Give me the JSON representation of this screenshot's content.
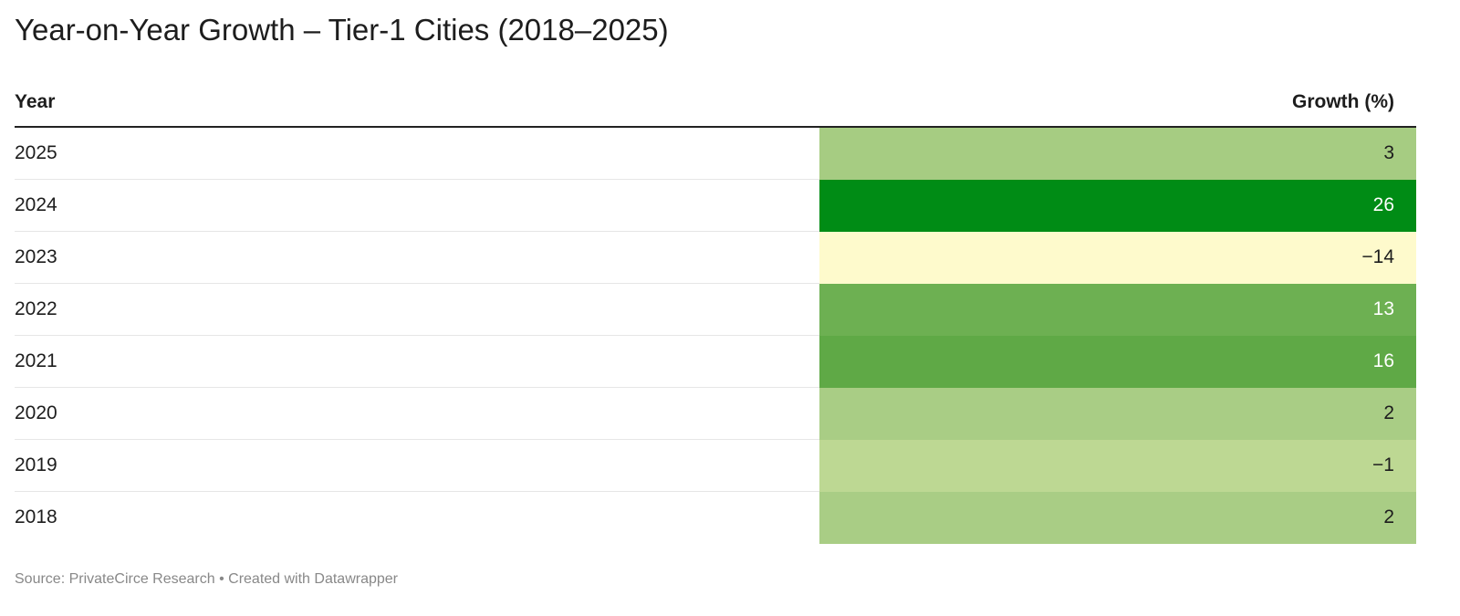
{
  "title": "Year-on-Year Growth – Tier-1 Cities (2018–2025)",
  "footer": "Source: PrivateCirce Research • Created with Datawrapper",
  "chart_data": {
    "type": "table",
    "title": "Year-on-Year Growth – Tier-1 Cities (2018–2025)",
    "columns": [
      "Year",
      "Growth (%)"
    ],
    "rows": [
      {
        "year": "2025",
        "growth": 3,
        "display": "3",
        "color": "#a6cc82",
        "text_color": "#1d1d1d"
      },
      {
        "year": "2024",
        "growth": 26,
        "display": "26",
        "color": "#008c15",
        "text_color": "#ffffff"
      },
      {
        "year": "2023",
        "growth": -14,
        "display": "−14",
        "color": "#fefacc",
        "text_color": "#1d1d1d"
      },
      {
        "year": "2022",
        "growth": 13,
        "display": "13",
        "color": "#6db052",
        "text_color": "#ffffff"
      },
      {
        "year": "2021",
        "growth": 16,
        "display": "16",
        "color": "#5fa946",
        "text_color": "#ffffff"
      },
      {
        "year": "2020",
        "growth": 2,
        "display": "2",
        "color": "#a9cd85",
        "text_color": "#1d1d1d"
      },
      {
        "year": "2019",
        "growth": -1,
        "display": "−1",
        "color": "#bdd893",
        "text_color": "#1d1d1d"
      },
      {
        "year": "2018",
        "growth": 2,
        "display": "2",
        "color": "#a9cd85",
        "text_color": "#1d1d1d"
      }
    ]
  }
}
